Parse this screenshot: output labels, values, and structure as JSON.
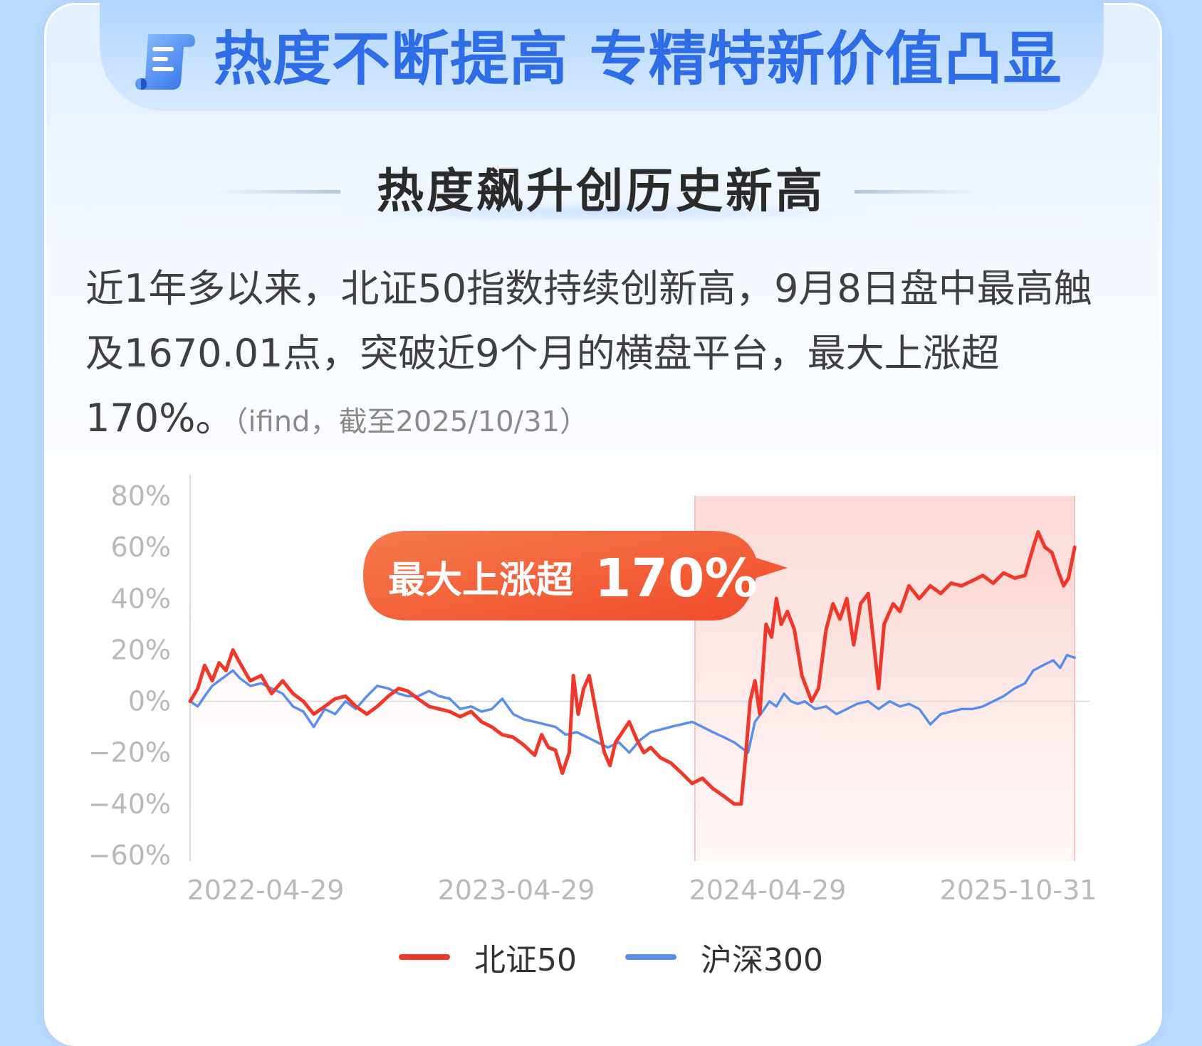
{
  "header": {
    "title": "热度不断提高 专精特新价值凸显",
    "icon": "scroll-icon"
  },
  "section": {
    "title": "热度飙升创历史新高"
  },
  "description": {
    "text": "近1年多以来，北证50指数持续创新高，9月8日盘中最高触及1670.01点，突破近9个月的横盘平台，最大上涨超170%。",
    "source": "（ifind，截至2025/10/31）"
  },
  "colors": {
    "bz50": "#f0382a",
    "hs300": "#5b8def",
    "highlight": "#fbd7d4",
    "title_blue": "#2f6de6",
    "callout": "#f46a3c"
  },
  "callout": {
    "text": "最大上涨超",
    "value": "170%"
  },
  "chart_data": {
    "type": "line",
    "title": "",
    "xlabel": "",
    "ylabel": "",
    "ylim": [
      -60,
      80
    ],
    "y_ticks": [
      "80%",
      "60%",
      "40%",
      "20%",
      "0%",
      "−20%",
      "−40%",
      "−60%"
    ],
    "x_ticks": [
      "2022-04-29",
      "2023-04-29",
      "2024-04-29",
      "2025-10-31"
    ],
    "highlight_range": [
      "2024-04-29",
      "2025-10-31"
    ],
    "grid": false,
    "legend": "bottom-center",
    "series": [
      {
        "name": "北证50",
        "color": "#f0382a",
        "points": [
          [
            "2022-04-29",
            0
          ],
          [
            "2022-05-10",
            5
          ],
          [
            "2022-05-20",
            14
          ],
          [
            "2022-05-31",
            8
          ],
          [
            "2022-06-10",
            15
          ],
          [
            "2022-06-20",
            12
          ],
          [
            "2022-06-30",
            20
          ],
          [
            "2022-07-10",
            15
          ],
          [
            "2022-07-25",
            8
          ],
          [
            "2022-08-10",
            10
          ],
          [
            "2022-08-25",
            3
          ],
          [
            "2022-09-10",
            8
          ],
          [
            "2022-09-25",
            3
          ],
          [
            "2022-10-10",
            0
          ],
          [
            "2022-10-25",
            -5
          ],
          [
            "2022-11-10",
            -2
          ],
          [
            "2022-11-25",
            1
          ],
          [
            "2022-12-10",
            2
          ],
          [
            "2022-12-25",
            -2
          ],
          [
            "2023-01-10",
            -5
          ],
          [
            "2023-01-25",
            -2
          ],
          [
            "2023-02-10",
            2
          ],
          [
            "2023-02-25",
            5
          ],
          [
            "2023-03-10",
            4
          ],
          [
            "2023-03-25",
            1
          ],
          [
            "2023-04-10",
            -2
          ],
          [
            "2023-04-25",
            -3
          ],
          [
            "2023-05-10",
            -4
          ],
          [
            "2023-05-25",
            -6
          ],
          [
            "2023-06-10",
            -4
          ],
          [
            "2023-06-25",
            -8
          ],
          [
            "2023-07-10",
            -10
          ],
          [
            "2023-07-25",
            -13
          ],
          [
            "2023-08-10",
            -14
          ],
          [
            "2023-08-25",
            -17
          ],
          [
            "2023-09-10",
            -21
          ],
          [
            "2023-09-20",
            -13
          ],
          [
            "2023-09-30",
            -18
          ],
          [
            "2023-10-10",
            -19
          ],
          [
            "2023-10-20",
            -28
          ],
          [
            "2023-10-30",
            -20
          ],
          [
            "2023-11-05",
            10
          ],
          [
            "2023-11-12",
            -5
          ],
          [
            "2023-11-20",
            5
          ],
          [
            "2023-11-28",
            10
          ],
          [
            "2023-12-05",
            0
          ],
          [
            "2023-12-12",
            -10
          ],
          [
            "2023-12-20",
            -20
          ],
          [
            "2023-12-28",
            -25
          ],
          [
            "2024-01-05",
            -16
          ],
          [
            "2024-01-15",
            -12
          ],
          [
            "2024-01-25",
            -8
          ],
          [
            "2024-02-05",
            -15
          ],
          [
            "2024-02-15",
            -20
          ],
          [
            "2024-02-25",
            -18
          ],
          [
            "2024-03-10",
            -22
          ],
          [
            "2024-03-25",
            -24
          ],
          [
            "2024-04-10",
            -28
          ],
          [
            "2024-04-25",
            -32
          ],
          [
            "2024-05-10",
            -30
          ],
          [
            "2024-05-25",
            -34
          ],
          [
            "2024-06-10",
            -37
          ],
          [
            "2024-06-25",
            -40
          ],
          [
            "2024-07-05",
            -40
          ],
          [
            "2024-07-12",
            -20
          ],
          [
            "2024-07-18",
            0
          ],
          [
            "2024-07-25",
            8
          ],
          [
            "2024-08-01",
            -5
          ],
          [
            "2024-08-10",
            30
          ],
          [
            "2024-08-18",
            25
          ],
          [
            "2024-08-25",
            40
          ],
          [
            "2024-09-01",
            30
          ],
          [
            "2024-09-10",
            35
          ],
          [
            "2024-09-20",
            28
          ],
          [
            "2024-10-01",
            10
          ],
          [
            "2024-10-15",
            0
          ],
          [
            "2024-10-25",
            5
          ],
          [
            "2024-11-05",
            28
          ],
          [
            "2024-11-15",
            38
          ],
          [
            "2024-11-25",
            32
          ],
          [
            "2024-12-05",
            40
          ],
          [
            "2024-12-15",
            22
          ],
          [
            "2024-12-25",
            38
          ],
          [
            "2025-01-05",
            42
          ],
          [
            "2025-01-12",
            25
          ],
          [
            "2025-01-20",
            5
          ],
          [
            "2025-01-28",
            30
          ],
          [
            "2025-02-10",
            38
          ],
          [
            "2025-02-20",
            35
          ],
          [
            "2025-03-05",
            45
          ],
          [
            "2025-03-20",
            40
          ],
          [
            "2025-04-05",
            45
          ],
          [
            "2025-04-20",
            42
          ],
          [
            "2025-05-05",
            46
          ],
          [
            "2025-05-20",
            45
          ],
          [
            "2025-06-05",
            47
          ],
          [
            "2025-06-20",
            49
          ],
          [
            "2025-07-05",
            46
          ],
          [
            "2025-07-20",
            50
          ],
          [
            "2025-08-05",
            48
          ],
          [
            "2025-08-20",
            49
          ],
          [
            "2025-09-01",
            60
          ],
          [
            "2025-09-08",
            66
          ],
          [
            "2025-09-18",
            60
          ],
          [
            "2025-09-28",
            58
          ],
          [
            "2025-10-08",
            50
          ],
          [
            "2025-10-15",
            45
          ],
          [
            "2025-10-22",
            48
          ],
          [
            "2025-10-31",
            60
          ]
        ]
      },
      {
        "name": "沪深300",
        "color": "#5b8def",
        "points": [
          [
            "2022-04-29",
            0
          ],
          [
            "2022-05-10",
            -2
          ],
          [
            "2022-05-20",
            2
          ],
          [
            "2022-05-31",
            6
          ],
          [
            "2022-06-10",
            8
          ],
          [
            "2022-06-20",
            10
          ],
          [
            "2022-06-30",
            12
          ],
          [
            "2022-07-10",
            9
          ],
          [
            "2022-07-25",
            6
          ],
          [
            "2022-08-10",
            7
          ],
          [
            "2022-08-25",
            5
          ],
          [
            "2022-09-10",
            3
          ],
          [
            "2022-09-25",
            -2
          ],
          [
            "2022-10-10",
            -4
          ],
          [
            "2022-10-25",
            -10
          ],
          [
            "2022-11-10",
            -3
          ],
          [
            "2022-11-25",
            -5
          ],
          [
            "2022-12-10",
            0
          ],
          [
            "2022-12-25",
            -3
          ],
          [
            "2023-01-10",
            2
          ],
          [
            "2023-01-25",
            6
          ],
          [
            "2023-02-10",
            5
          ],
          [
            "2023-02-25",
            3
          ],
          [
            "2023-03-10",
            2
          ],
          [
            "2023-03-25",
            2
          ],
          [
            "2023-04-10",
            4
          ],
          [
            "2023-04-25",
            2
          ],
          [
            "2023-05-10",
            1
          ],
          [
            "2023-05-25",
            -3
          ],
          [
            "2023-06-10",
            -2
          ],
          [
            "2023-06-25",
            -4
          ],
          [
            "2023-07-10",
            -3
          ],
          [
            "2023-07-25",
            1
          ],
          [
            "2023-08-10",
            -5
          ],
          [
            "2023-08-25",
            -7
          ],
          [
            "2023-09-10",
            -8
          ],
          [
            "2023-09-25",
            -9
          ],
          [
            "2023-10-10",
            -10
          ],
          [
            "2023-10-25",
            -13
          ],
          [
            "2023-11-10",
            -12
          ],
          [
            "2023-11-25",
            -14
          ],
          [
            "2023-12-10",
            -16
          ],
          [
            "2023-12-25",
            -18
          ],
          [
            "2024-01-10",
            -16
          ],
          [
            "2024-01-25",
            -20
          ],
          [
            "2024-02-10",
            -15
          ],
          [
            "2024-02-25",
            -12
          ],
          [
            "2024-03-10",
            -11
          ],
          [
            "2024-03-25",
            -10
          ],
          [
            "2024-04-10",
            -9
          ],
          [
            "2024-04-25",
            -8
          ],
          [
            "2024-05-10",
            -10
          ],
          [
            "2024-05-25",
            -12
          ],
          [
            "2024-06-10",
            -14
          ],
          [
            "2024-06-25",
            -16
          ],
          [
            "2024-07-05",
            -18
          ],
          [
            "2024-07-15",
            -20
          ],
          [
            "2024-07-25",
            -8
          ],
          [
            "2024-08-05",
            -4
          ],
          [
            "2024-08-15",
            0
          ],
          [
            "2024-08-25",
            -2
          ],
          [
            "2024-09-05",
            3
          ],
          [
            "2024-09-15",
            0
          ],
          [
            "2024-09-25",
            -1
          ],
          [
            "2024-10-05",
            0
          ],
          [
            "2024-10-20",
            -3
          ],
          [
            "2024-11-05",
            -2
          ],
          [
            "2024-11-20",
            -5
          ],
          [
            "2024-12-05",
            -3
          ],
          [
            "2024-12-20",
            -1
          ],
          [
            "2025-01-05",
            0
          ],
          [
            "2025-01-20",
            -3
          ],
          [
            "2025-02-05",
            0
          ],
          [
            "2025-02-20",
            -2
          ],
          [
            "2025-03-05",
            -1
          ],
          [
            "2025-03-20",
            -3
          ],
          [
            "2025-04-05",
            -9
          ],
          [
            "2025-04-20",
            -5
          ],
          [
            "2025-05-05",
            -4
          ],
          [
            "2025-05-20",
            -3
          ],
          [
            "2025-06-05",
            -3
          ],
          [
            "2025-06-20",
            -2
          ],
          [
            "2025-07-05",
            0
          ],
          [
            "2025-07-20",
            2
          ],
          [
            "2025-08-05",
            5
          ],
          [
            "2025-08-20",
            7
          ],
          [
            "2025-09-01",
            12
          ],
          [
            "2025-09-15",
            14
          ],
          [
            "2025-09-30",
            16
          ],
          [
            "2025-10-10",
            13
          ],
          [
            "2025-10-20",
            18
          ],
          [
            "2025-10-31",
            17
          ]
        ]
      }
    ]
  }
}
